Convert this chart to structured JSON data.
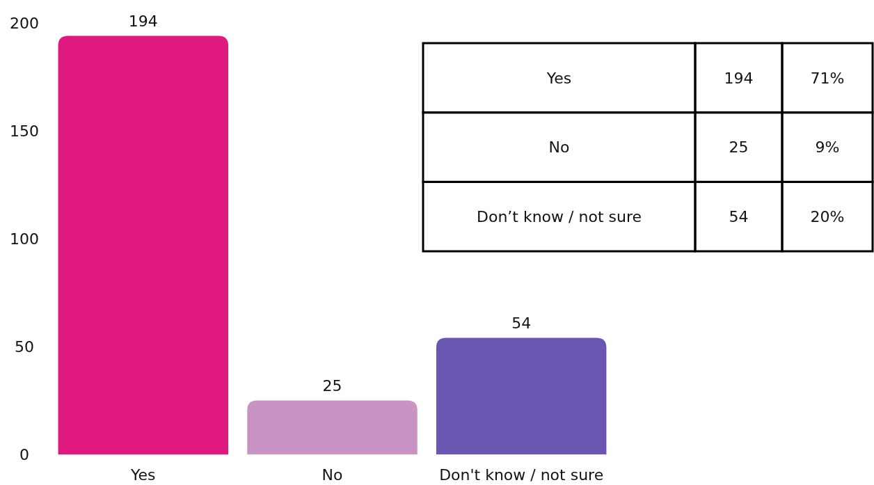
{
  "chart_data": {
    "type": "bar",
    "categories": [
      "Yes",
      "No",
      "Don't know / not sure"
    ],
    "values": [
      194,
      25,
      54
    ],
    "colors": [
      "#e0197f",
      "#c994c3",
      "#6a55b0"
    ],
    "ylim": [
      0,
      200
    ],
    "yticks": [
      0,
      50,
      100,
      150,
      200
    ],
    "grid": false,
    "data_labels": true,
    "annotations": [
      "Yes",
      "194",
      "71%",
      "No",
      "25",
      "9%",
      "Don’t know / not sure",
      "54",
      "20%"
    ]
  }
}
